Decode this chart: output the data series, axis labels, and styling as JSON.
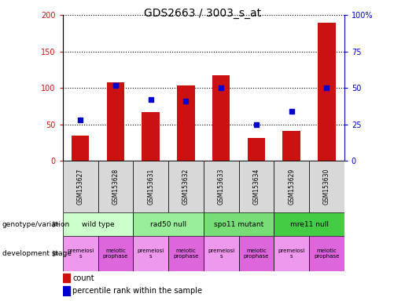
{
  "title": "GDS2663 / 3003_s_at",
  "samples": [
    "GSM153627",
    "GSM153628",
    "GSM153631",
    "GSM153632",
    "GSM153633",
    "GSM153634",
    "GSM153629",
    "GSM153630"
  ],
  "counts": [
    35,
    108,
    67,
    104,
    118,
    32,
    41,
    190
  ],
  "percentiles": [
    28,
    52,
    42,
    41,
    50,
    25,
    34,
    50
  ],
  "ylim_left": [
    0,
    200
  ],
  "ylim_right": [
    0,
    100
  ],
  "yticks_left": [
    0,
    50,
    100,
    150,
    200
  ],
  "yticks_right": [
    0,
    25,
    50,
    75,
    100
  ],
  "ytick_labels_right": [
    "0",
    "25",
    "50",
    "75",
    "100%"
  ],
  "bar_color": "#cc1111",
  "dot_color": "#0000cc",
  "genotype_groups": [
    {
      "label": "wild type",
      "start": 0,
      "end": 2,
      "color": "#ccffcc"
    },
    {
      "label": "rad50 null",
      "start": 2,
      "end": 4,
      "color": "#99ee99"
    },
    {
      "label": "spo11 mutant",
      "start": 4,
      "end": 6,
      "color": "#77dd77"
    },
    {
      "label": "mre11 null",
      "start": 6,
      "end": 8,
      "color": "#44cc44"
    }
  ],
  "dev_premeiosis_color": "#ee99ee",
  "dev_meiotic_color": "#dd66dd",
  "bar_width": 0.5,
  "tick_label_fontsize": 7,
  "title_fontsize": 10
}
